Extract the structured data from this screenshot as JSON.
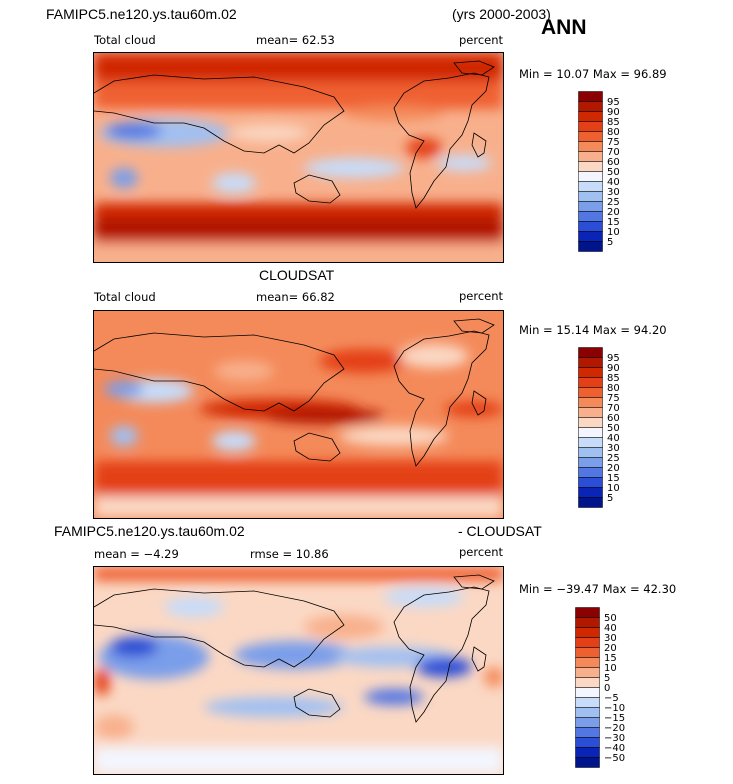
{
  "header": {
    "model": "FAMIPC5.ne120.ys.tau60m.02",
    "years": "(yrs 2000-2003)",
    "season": "ANN"
  },
  "panels": [
    {
      "id": "model",
      "title": "",
      "left_label": "Total cloud",
      "stat_text": "mean=   62.53",
      "units": "percent",
      "minmax": "Min =  10.07 Max =  96.89",
      "colorbar": [
        "95",
        "90",
        "85",
        "80",
        "75",
        "70",
        "60",
        "50",
        "40",
        "30",
        "25",
        "20",
        "15",
        "10",
        "5"
      ],
      "colors": [
        "#8b0000",
        "#b01800",
        "#d02800",
        "#e44018",
        "#ef6030",
        "#f48a5a",
        "#f8b08c",
        "#fbd8c4",
        "#f3f6ff",
        "#c7dcf9",
        "#a0c0f2",
        "#7a9eea",
        "#5276e2",
        "#2a4ed6",
        "#0a24b8",
        "#00148c"
      ]
    },
    {
      "id": "obs",
      "title": "CLOUDSAT",
      "left_label": "Total cloud",
      "stat_text": "mean=   66.82",
      "units": "percent",
      "minmax": "Min =  15.14 Max =  94.20",
      "colorbar": [
        "95",
        "90",
        "85",
        "80",
        "75",
        "70",
        "60",
        "50",
        "40",
        "30",
        "25",
        "20",
        "15",
        "10",
        "5"
      ],
      "colors": [
        "#8b0000",
        "#b01800",
        "#d02800",
        "#e44018",
        "#ef6030",
        "#f48a5a",
        "#f8b08c",
        "#fbd8c4",
        "#f3f6ff",
        "#c7dcf9",
        "#a0c0f2",
        "#7a9eea",
        "#5276e2",
        "#2a4ed6",
        "#0a24b8",
        "#00148c"
      ]
    },
    {
      "id": "diff",
      "title_left": "FAMIPC5.ne120.ys.tau60m.02",
      "title_right": "- CLOUDSAT",
      "mean_text": "mean =  −4.29",
      "rmse_text": "rmse =   10.86",
      "units": "percent",
      "minmax": "Min = −39.47 Max =  42.30",
      "colorbar": [
        "50",
        "40",
        "30",
        "20",
        "15",
        "10",
        "5",
        "0",
        "−5",
        "−10",
        "−15",
        "−20",
        "−30",
        "−40",
        "−50"
      ],
      "colors": [
        "#8b0000",
        "#b01800",
        "#d02800",
        "#e44018",
        "#ef6030",
        "#f48a5a",
        "#f8b08c",
        "#fbd8c4",
        "#f3f6ff",
        "#c7dcf9",
        "#a0c0f2",
        "#7a9eea",
        "#5276e2",
        "#2a4ed6",
        "#0a24b8",
        "#00148c"
      ]
    }
  ]
}
